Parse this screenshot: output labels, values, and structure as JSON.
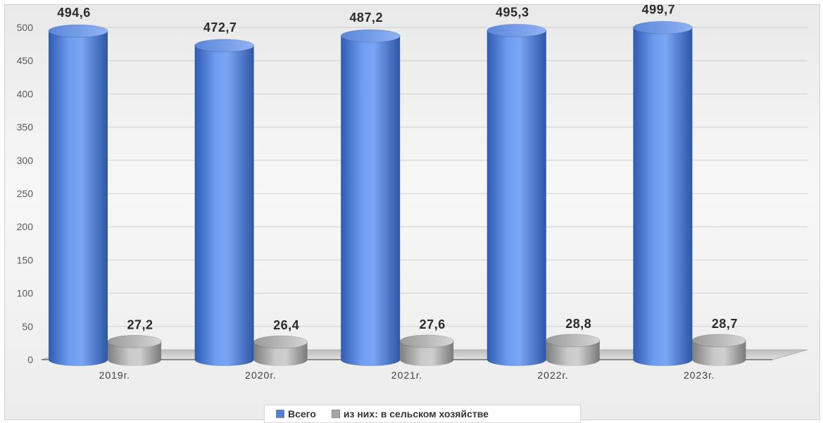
{
  "chart_data": {
    "type": "bar",
    "categories": [
      "2019г.",
      "2020г.",
      "2021г.",
      "2022г.",
      "2023г."
    ],
    "series": [
      {
        "name": "Всего",
        "values": [
          494.6,
          472.7,
          487.2,
          495.3,
          499.7
        ],
        "labels": [
          "494,6",
          "472,7",
          "487,2",
          "495,3",
          "499,7"
        ],
        "color": "#4f7fd6"
      },
      {
        "name": "из них: в сельском хозяйстве",
        "values": [
          27.2,
          26.4,
          27.6,
          28.8,
          28.7
        ],
        "labels": [
          "27,2",
          "26,4",
          "27,6",
          "28,8",
          "28,7"
        ],
        "color": "#a6a6a6"
      }
    ],
    "y_ticks": [
      "0",
      "50",
      "100",
      "150",
      "200",
      "250",
      "300",
      "350",
      "400",
      "450",
      "500"
    ],
    "ylim": [
      0,
      500
    ],
    "grid": true,
    "legend_position": "bottom",
    "style": "3d-cylinder"
  }
}
